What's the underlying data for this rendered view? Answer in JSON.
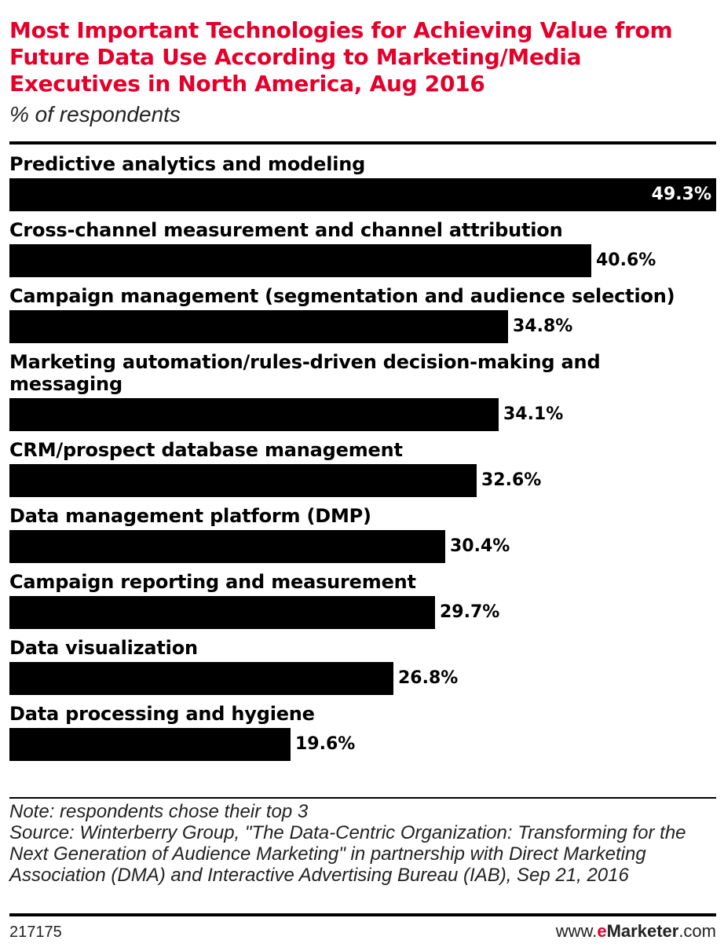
{
  "header": {
    "title": "Most Important Technologies for Achieving Value from Future Data Use According to Marketing/Media Executives in North America, Aug 2016",
    "subtitle": "% of respondents"
  },
  "chart_data": {
    "type": "bar",
    "orientation": "horizontal",
    "title": "Most Important Technologies for Achieving Value from Future Data Use According to Marketing/Media Executives in North America, Aug 2016",
    "ylabel": "% of respondents",
    "categories": [
      "Predictive analytics and modeling",
      "Cross-channel measurement and channel attribution",
      "Campaign management (segmentation and audience selection)",
      "Marketing automation/rules-driven decision-making and messaging",
      "CRM/prospect database management",
      "Data management platform (DMP)",
      "Campaign reporting and measurement",
      "Data visualization",
      "Data processing and hygiene"
    ],
    "values": [
      49.3,
      40.6,
      34.8,
      34.1,
      32.6,
      30.4,
      29.7,
      26.8,
      19.6
    ],
    "value_labels": [
      "49.3%",
      "40.6%",
      "34.8%",
      "34.1%",
      "32.6%",
      "30.4%",
      "29.7%",
      "26.8%",
      "19.6%"
    ],
    "xlim": [
      0,
      49.3
    ],
    "grid": false,
    "legend": "none",
    "bar_color": "#000000"
  },
  "footer": {
    "note": "Note: respondents chose their top 3",
    "source": "Source: Winterberry Group, \"The Data-Centric Organization: Transforming for the Next Generation of Audience Marketing\" in partnership with Direct Marketing Association (DMA) and Interactive Advertising Bureau (IAB), Sep 21, 2016",
    "chart_id": "217175",
    "brand_prefix": "www.",
    "brand_e": "e",
    "brand_name": "Marketer",
    "brand_suffix": ".com"
  },
  "colors": {
    "title": "#e4002b",
    "text": "#000000",
    "bar": "#000000"
  }
}
